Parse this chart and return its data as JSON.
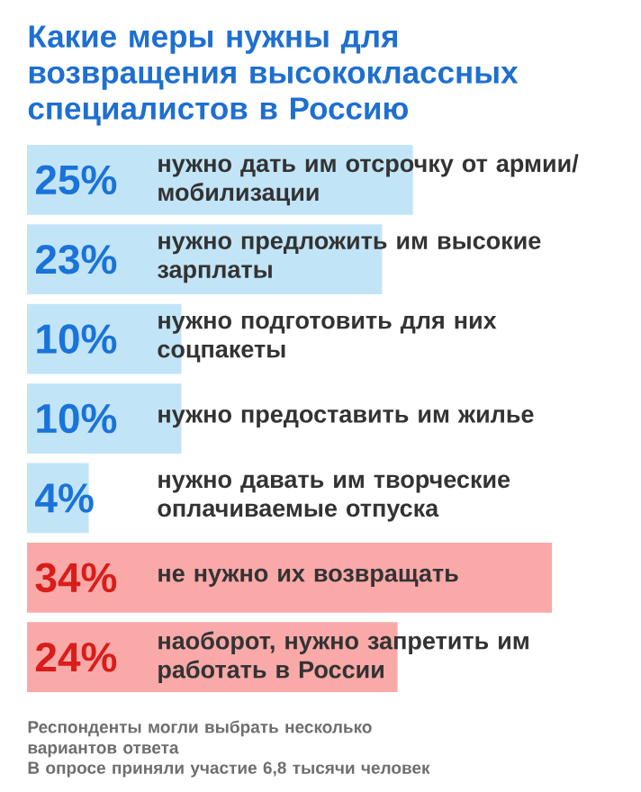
{
  "chart_data": {
    "type": "bar",
    "orientation": "horizontal",
    "title": "Какие меры нужны для возвращения высококлассных специалистов в Россию",
    "categories": [
      "нужно дать им отсрочку от армии/ мобилизации",
      "нужно предложить им высокие зарплаты",
      "нужно подготовить для них соцпакеты",
      "нужно предоставить им жилье",
      "нужно давать им творческие оплачиваемые отпуска",
      "не нужно их возвращать",
      "наоборот, нужно запретить им работать в России"
    ],
    "values": [
      25,
      23,
      10,
      10,
      4,
      34,
      24
    ],
    "value_labels": [
      "25%",
      "23%",
      "10%",
      "10%",
      "4%",
      "34%",
      "24%"
    ],
    "colors": [
      "#c2e4f7",
      "#c2e4f7",
      "#c2e4f7",
      "#c2e4f7",
      "#c2e4f7",
      "#f8a9a8",
      "#f8a9a8"
    ],
    "annotations": [
      "Респонденты могли выбрать несколько вариантов ответа",
      "В опросе приняли участие 6,8 тысячи человек"
    ]
  }
}
